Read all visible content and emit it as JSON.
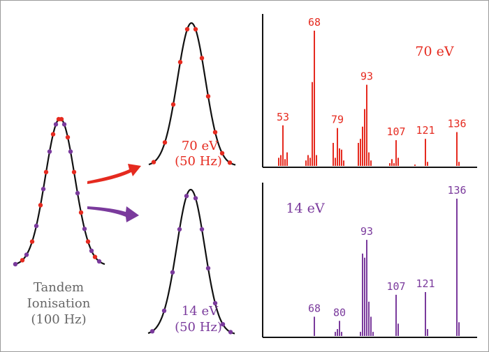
{
  "colors": {
    "red": "#e52a1f",
    "purple": "#7a3a9c",
    "curve": "#111111",
    "label": "#666666"
  },
  "left_label": {
    "lines": [
      "Tandem",
      "Ionisation",
      "(100 Hz)"
    ]
  },
  "top_peak_label": {
    "energy": "70 eV",
    "rate": "(50 Hz)"
  },
  "bottom_peak_label": {
    "energy": "14 eV",
    "rate": "(50 Hz)"
  },
  "chart_data": [
    {
      "type": "bar",
      "title": "70 eV",
      "color": "#e52a1f",
      "peak_labels": [
        "53",
        "68",
        "79",
        "93",
        "107",
        "121",
        "136"
      ],
      "peaks": [
        {
          "x": 51,
          "y": 6
        },
        {
          "x": 52,
          "y": 8
        },
        {
          "x": 53,
          "y": 30
        },
        {
          "x": 54,
          "y": 5
        },
        {
          "x": 55,
          "y": 10
        },
        {
          "x": 64,
          "y": 4
        },
        {
          "x": 65,
          "y": 8
        },
        {
          "x": 66,
          "y": 6
        },
        {
          "x": 67,
          "y": 62
        },
        {
          "x": 68,
          "y": 100
        },
        {
          "x": 69,
          "y": 8
        },
        {
          "x": 77,
          "y": 17
        },
        {
          "x": 78,
          "y": 6
        },
        {
          "x": 79,
          "y": 28
        },
        {
          "x": 80,
          "y": 13
        },
        {
          "x": 81,
          "y": 12
        },
        {
          "x": 82,
          "y": 4
        },
        {
          "x": 89,
          "y": 17
        },
        {
          "x": 90,
          "y": 20
        },
        {
          "x": 91,
          "y": 29
        },
        {
          "x": 92,
          "y": 42
        },
        {
          "x": 93,
          "y": 60
        },
        {
          "x": 94,
          "y": 10
        },
        {
          "x": 95,
          "y": 4
        },
        {
          "x": 104,
          "y": 2
        },
        {
          "x": 105,
          "y": 5
        },
        {
          "x": 106,
          "y": 2
        },
        {
          "x": 107,
          "y": 19
        },
        {
          "x": 108,
          "y": 6
        },
        {
          "x": 116,
          "y": 1
        },
        {
          "x": 121,
          "y": 20
        },
        {
          "x": 122,
          "y": 3
        },
        {
          "x": 136,
          "y": 25
        },
        {
          "x": 137,
          "y": 3
        }
      ]
    },
    {
      "type": "bar",
      "title": "14 eV",
      "color": "#7a3a9c",
      "peak_labels": [
        "68",
        "80",
        "93",
        "107",
        "121",
        "136"
      ],
      "peaks": [
        {
          "x": 68,
          "y": 14
        },
        {
          "x": 78,
          "y": 3
        },
        {
          "x": 79,
          "y": 5
        },
        {
          "x": 80,
          "y": 11
        },
        {
          "x": 81,
          "y": 3
        },
        {
          "x": 90,
          "y": 3
        },
        {
          "x": 91,
          "y": 60
        },
        {
          "x": 92,
          "y": 57
        },
        {
          "x": 93,
          "y": 70
        },
        {
          "x": 94,
          "y": 25
        },
        {
          "x": 95,
          "y": 14
        },
        {
          "x": 96,
          "y": 3
        },
        {
          "x": 107,
          "y": 30
        },
        {
          "x": 108,
          "y": 9
        },
        {
          "x": 121,
          "y": 32
        },
        {
          "x": 122,
          "y": 5
        },
        {
          "x": 136,
          "y": 100
        },
        {
          "x": 137,
          "y": 10
        }
      ]
    }
  ]
}
